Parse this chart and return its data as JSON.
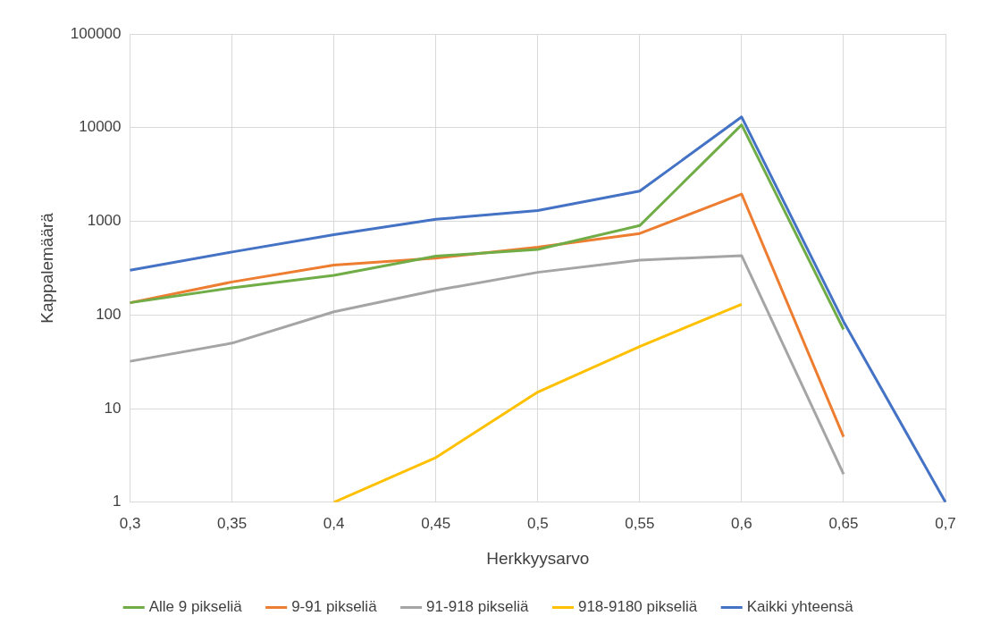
{
  "chart_data": {
    "type": "line",
    "xlabel": "Herkkyysarvo",
    "ylabel": "Kappalemäärä",
    "categories": [
      "0,3",
      "0,35",
      "0,4",
      "0,45",
      "0,5",
      "0,55",
      "0,6",
      "0,65",
      "0,7"
    ],
    "series": [
      {
        "name": "Alle 9 pikseliä",
        "color": "#70ad47",
        "values": [
          135,
          195,
          265,
          425,
          500,
          900,
          10700,
          70,
          null
        ]
      },
      {
        "name": "9-91 pikseliä",
        "color": "#ed7d31",
        "values": [
          135,
          225,
          340,
          405,
          530,
          740,
          1950,
          5,
          null
        ]
      },
      {
        "name": "91-918 pikseliä",
        "color": "#a5a5a5",
        "values": [
          32,
          50,
          108,
          183,
          285,
          385,
          430,
          2,
          null
        ]
      },
      {
        "name": "918-9180 pikseliä",
        "color": "#ffc000",
        "values": [
          null,
          null,
          1,
          3,
          15,
          46,
          130,
          null,
          null
        ]
      },
      {
        "name": "Kaikki yhteensä",
        "color": "#4472c4",
        "values": [
          300,
          470,
          720,
          1050,
          1300,
          2100,
          13000,
          85,
          1
        ]
      }
    ],
    "log": "y",
    "ylim": [
      1,
      100000
    ],
    "yticks": [
      1,
      10,
      100,
      1000,
      10000,
      100000
    ],
    "grid": true,
    "legend": "bottom",
    "marker": "none",
    "line_style": "solid"
  }
}
